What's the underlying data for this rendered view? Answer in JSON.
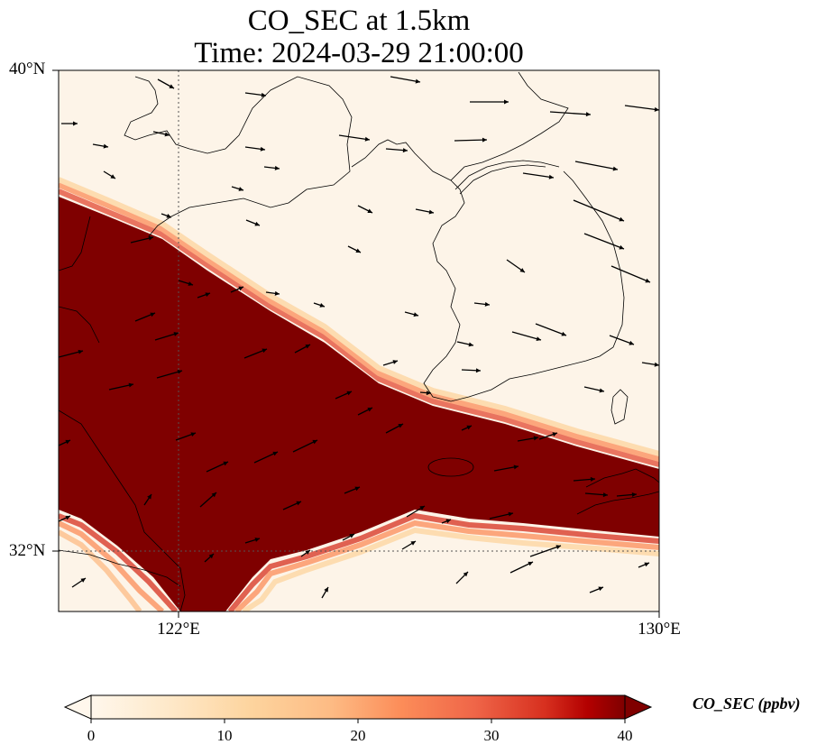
{
  "title": {
    "line1": "CO_SEC at 1.5km",
    "line2": "Time: 2024-03-29 21:00:00"
  },
  "axes": {
    "lat_ticks": [
      "40°N",
      "32°N"
    ],
    "lon_ticks": [
      "122°E",
      "130°E"
    ],
    "lon_range": [
      120,
      130
    ],
    "lat_range": [
      31,
      40
    ]
  },
  "colorbar": {
    "label": "CO_SEC (ppbv)",
    "ticks": [
      "0",
      "10",
      "20",
      "30",
      "40"
    ],
    "range": [
      0,
      40
    ],
    "extend": "both",
    "colormap": "OrRd"
  },
  "colors": {
    "low": "#fff7ec",
    "high": "#7f0000",
    "coast": "#000000",
    "grid": "#555555"
  },
  "plume": {
    "description_value_inside": 40,
    "value_outside": 0
  },
  "wind_vectors_shown": true
}
